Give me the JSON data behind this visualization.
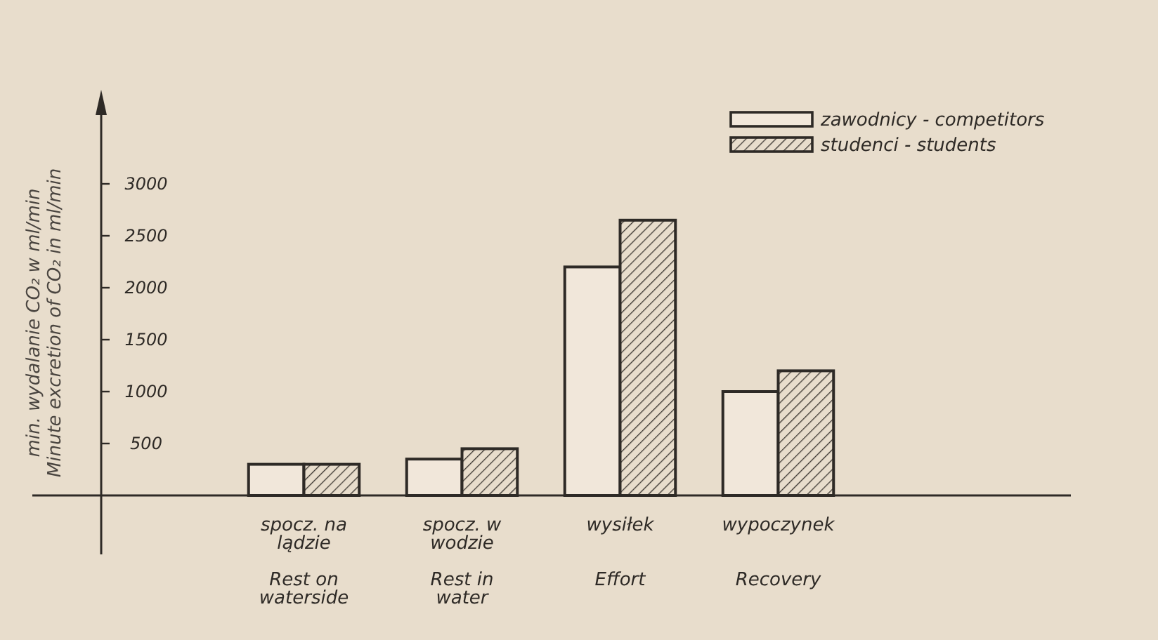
{
  "chart_data": {
    "type": "bar",
    "ylabel": "min. wydalanie CO₂ w ml/min\nMinute excretion of CO₂ in ml/min",
    "categories": [
      "spocz. na\nlądzie\n\nRest on\nwaterside",
      "spocz. w\nwodzie\n\nRest in\nwater",
      "wysiłek\n\n\nEffort",
      "wypoczynek\n\n\nRecovery"
    ],
    "series": [
      {
        "name": "zawodnicy - competitors",
        "color": "#f1e7da",
        "values": [
          300,
          350,
          2200,
          1000
        ]
      },
      {
        "name": "studenci - students",
        "color": "#3a3530",
        "values": [
          300,
          450,
          2650,
          1200
        ]
      }
    ],
    "ylim": [
      0,
      3000
    ],
    "yticks": [
      500,
      1000,
      1500,
      2000,
      2500,
      3000
    ],
    "grid": false,
    "legend": "top right"
  }
}
